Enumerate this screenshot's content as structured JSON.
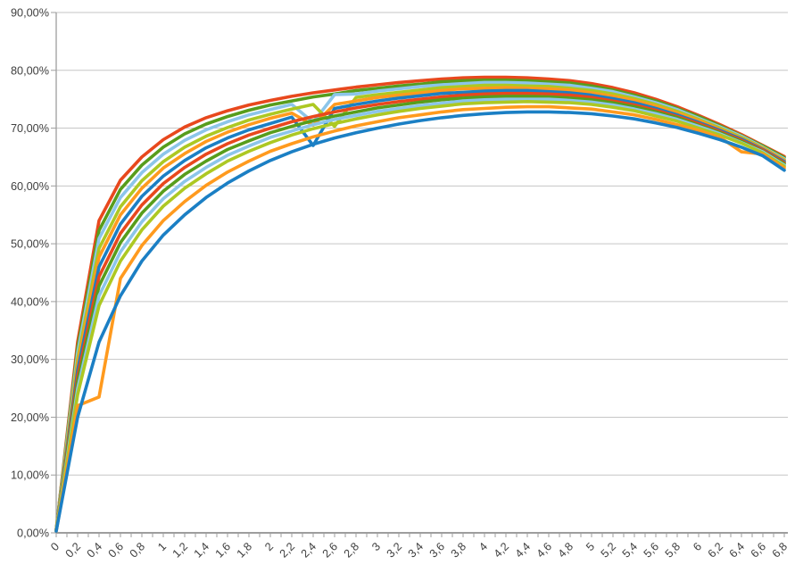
{
  "chart_data": {
    "type": "line",
    "title": "",
    "xlabel": "",
    "ylabel": "",
    "legend": "none",
    "grid": "horizontal",
    "xlim": [
      0,
      6.8
    ],
    "ylim": [
      0,
      90
    ],
    "x_start": 0,
    "x_step": 0.2,
    "y_step": 10,
    "y_ticks": [
      "0,00%",
      "10,00%",
      "20,00%",
      "30,00%",
      "40,00%",
      "50,00%",
      "60,00%",
      "70,00%",
      "80,00%",
      "90,00%"
    ],
    "x_ticks": [
      "0",
      "0,2",
      "0,4",
      "0,6",
      "0,8",
      "1",
      "1,2",
      "1,4",
      "1,6",
      "1,8",
      "2",
      "2,2",
      "2,4",
      "2,6",
      "2,8",
      "3",
      "3,2",
      "3,4",
      "3,6",
      "3,8",
      "4",
      "4,2",
      "4,4",
      "4,6",
      "4,8",
      "5",
      "5,2",
      "5,4",
      "5,6",
      "5,8",
      "6",
      "6,2",
      "6,4",
      "6,6",
      "6,8"
    ],
    "x_minor_tick_step": 0.1,
    "series": [
      {
        "id": "series-01",
        "color": "#e8481d",
        "values": [
          0.5,
          33,
          54,
          61,
          65,
          68,
          70.2,
          71.8,
          73,
          74,
          74.8,
          75.5,
          76.1,
          76.6,
          77.1,
          77.5,
          77.9,
          78.2,
          78.5,
          78.7,
          78.8,
          78.8,
          78.7,
          78.5,
          78.2,
          77.7,
          77,
          76.1,
          75,
          73.7,
          72.2,
          70.6,
          68.9,
          67,
          65.1
        ]
      },
      {
        "id": "series-02",
        "color": "#579d1c",
        "values": [
          0.5,
          32,
          52.3,
          59.4,
          63.6,
          66.7,
          69,
          70.7,
          72,
          73.1,
          74,
          74.7,
          75.4,
          75.9,
          76.5,
          76.9,
          77.3,
          77.6,
          78,
          78.2,
          78.3,
          78.3,
          78.2,
          78,
          77.8,
          77.3,
          76.6,
          75.7,
          74.7,
          73.4,
          72,
          70.4,
          68.7,
          66.9,
          64.9
        ]
      },
      {
        "id": "series-03",
        "color": "#8cc5ea",
        "values": [
          0.5,
          31.1,
          50.9,
          58,
          62.3,
          65.5,
          67.9,
          69.7,
          71.1,
          72.3,
          73.2,
          74.1,
          71,
          75.8,
          75.9,
          76.4,
          76.8,
          77.2,
          77.5,
          77.7,
          77.9,
          77.9,
          77.8,
          77.6,
          77.4,
          76.9,
          76.3,
          75.4,
          74.4,
          73.2,
          71.7,
          70.2,
          68.6,
          66.7,
          64.7
        ]
      },
      {
        "id": "series-04",
        "color": "#adc823",
        "values": [
          0.5,
          30,
          49.2,
          56.4,
          60.9,
          64.2,
          66.7,
          68.6,
          70.1,
          71.4,
          72.4,
          73.3,
          74.1,
          70.3,
          75.3,
          75.8,
          76.2,
          76.6,
          77,
          77.2,
          77.4,
          77.4,
          77.3,
          77.2,
          76.9,
          76.5,
          75.9,
          75.1,
          74.1,
          72.9,
          71.5,
          70,
          68.4,
          66.6,
          64.5
        ]
      },
      {
        "id": "series-05",
        "color": "#ff9a1e",
        "values": [
          0.4,
          29.1,
          47.7,
          55,
          59.6,
          63.1,
          65.6,
          67.7,
          69.3,
          70.6,
          71.7,
          72.6,
          70.5,
          74.1,
          74.7,
          75.3,
          75.7,
          76.1,
          76.5,
          76.8,
          76.9,
          77,
          76.9,
          76.8,
          76.6,
          76.1,
          75.5,
          74.8,
          73.8,
          72.6,
          71.3,
          69.8,
          68.2,
          66.5,
          64.4
        ]
      },
      {
        "id": "series-06",
        "color": "#1b7fc4",
        "values": [
          0.4,
          28.1,
          46,
          53.4,
          58.2,
          61.7,
          64.4,
          66.6,
          68.3,
          69.7,
          70.8,
          71.9,
          67,
          73.4,
          74.1,
          74.7,
          75.2,
          75.6,
          76,
          76.2,
          76.4,
          76.5,
          76.5,
          76.3,
          76.1,
          75.7,
          75.1,
          74.4,
          73.4,
          72.3,
          71,
          69.6,
          68.1,
          66.3,
          64.2
        ]
      },
      {
        "id": "series-07",
        "color": "#e8481d",
        "values": [
          0.4,
          27,
          44.3,
          51.8,
          56.7,
          60.4,
          63.2,
          65.5,
          67.3,
          68.8,
          70,
          71.1,
          72,
          72.8,
          73.5,
          74.1,
          74.6,
          75,
          75.4,
          75.7,
          75.9,
          76,
          76,
          75.9,
          75.7,
          75.3,
          74.7,
          74,
          73.1,
          72,
          70.8,
          69.4,
          67.9,
          66.2,
          64
        ]
      },
      {
        "id": "series-08",
        "color": "#579d1c",
        "values": [
          0.4,
          26,
          42.7,
          50.2,
          55.3,
          59.1,
          62,
          64.3,
          66.3,
          67.8,
          69.2,
          70.3,
          71.3,
          72.1,
          72.8,
          73.5,
          74,
          74.5,
          74.9,
          75.2,
          75.4,
          75.5,
          75.5,
          75.4,
          75.2,
          74.9,
          74.4,
          73.7,
          72.8,
          71.8,
          70.5,
          69.2,
          67.7,
          66,
          63.8
        ]
      },
      {
        "id": "series-09",
        "color": "#8cc5ea",
        "values": [
          0.4,
          24.9,
          41,
          48.6,
          53.8,
          57.8,
          60.8,
          63.2,
          65.3,
          66.9,
          68.4,
          69.5,
          70.6,
          71.5,
          72.2,
          72.9,
          73.4,
          73.9,
          74.3,
          74.7,
          74.9,
          75,
          75,
          75,
          74.8,
          74.5,
          74,
          73.3,
          72.5,
          71.5,
          70.3,
          69,
          67.5,
          65.9,
          63.6
        ]
      },
      {
        "id": "series-10",
        "color": "#adc823",
        "values": [
          0.4,
          23.9,
          39.3,
          47,
          52.4,
          56.5,
          59.6,
          62.1,
          64.3,
          66,
          67.5,
          68.8,
          69.9,
          70.8,
          71.6,
          72.3,
          72.9,
          73.4,
          73.8,
          74.2,
          74.4,
          74.5,
          74.6,
          74.5,
          74.4,
          74.1,
          73.6,
          73,
          72.1,
          71.2,
          70,
          68.8,
          67.4,
          65.7,
          63.4
        ]
      },
      {
        "id": "series-11",
        "color": "#ff9a1e",
        "values": [
          0.3,
          22,
          23.5,
          44,
          49.7,
          54,
          57.3,
          60.1,
          62.4,
          64.3,
          66,
          67.3,
          68.5,
          69.5,
          70.4,
          71.1,
          71.8,
          72.3,
          72.8,
          73.2,
          73.4,
          73.6,
          73.7,
          73.7,
          73.5,
          73.3,
          72.8,
          72.3,
          71.5,
          70.6,
          69.6,
          68.4,
          65.9,
          65.5,
          63.1
        ]
      },
      {
        "id": "series-12",
        "color": "#1b7fc4",
        "values": [
          0.3,
          20,
          33,
          41,
          47,
          51.5,
          55,
          58,
          60.5,
          62.6,
          64.4,
          65.9,
          67.2,
          68.3,
          69.2,
          70,
          70.7,
          71.3,
          71.8,
          72.2,
          72.5,
          72.7,
          72.8,
          72.8,
          72.7,
          72.5,
          72.1,
          71.6,
          70.9,
          70.1,
          69.1,
          68,
          66.7,
          65.2,
          62.7
        ]
      }
    ]
  },
  "style": {
    "background": "#ffffff",
    "grid_color": "#c6c6c6",
    "axis_color": "#9e9e9e",
    "tick_label_color": "#404040"
  }
}
